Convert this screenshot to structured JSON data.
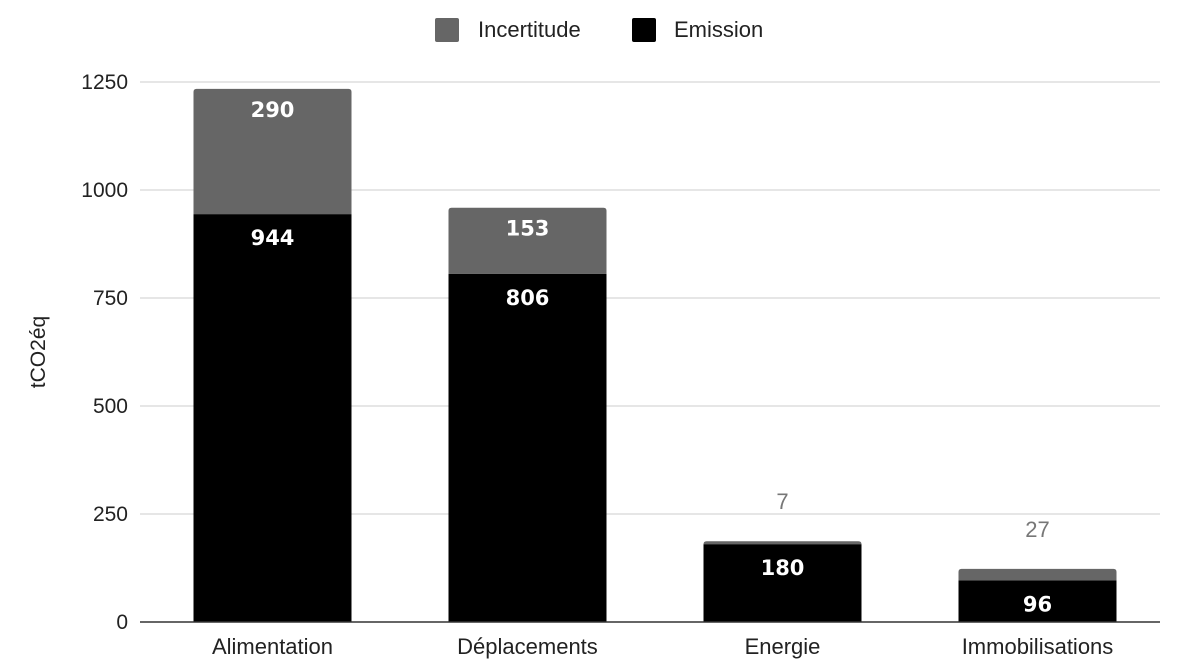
{
  "chart_data": {
    "type": "bar",
    "stacked": true,
    "title": "",
    "xlabel": "",
    "ylabel": "tCO2éq",
    "ylim": [
      0,
      1250
    ],
    "yticks": [
      0,
      250,
      500,
      750,
      1000,
      1250
    ],
    "grid": true,
    "legend_position": "top",
    "categories": [
      "Alimentation",
      "Déplacements",
      "Energie",
      "Immobilisations"
    ],
    "series": [
      {
        "name": "Emission",
        "values": [
          944,
          806,
          180,
          96
        ],
        "color": "#000000"
      },
      {
        "name": "Incertitude",
        "values": [
          290,
          153,
          7,
          27
        ],
        "color": "#666666"
      }
    ],
    "legend_order": [
      "Incertitude",
      "Emission"
    ]
  }
}
